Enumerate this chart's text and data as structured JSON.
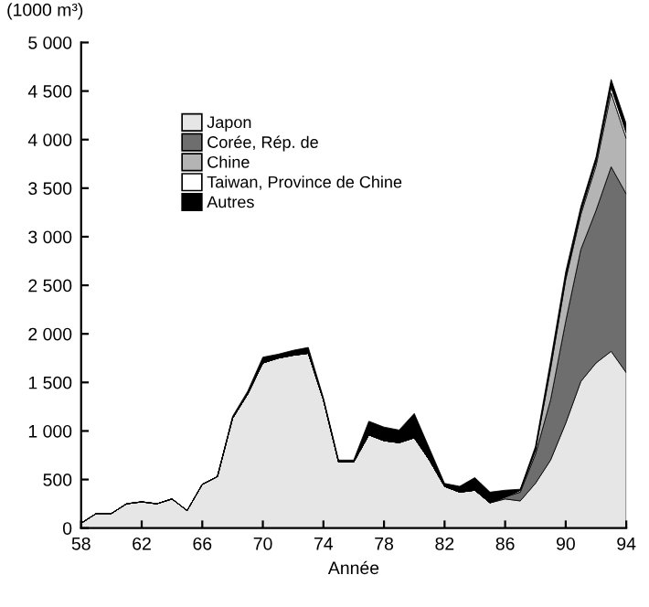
{
  "chart_data": {
    "type": "area",
    "stacked": true,
    "xlabel": "Année",
    "ylabel": "(1000 m³)",
    "legend": "top left",
    "grid": false,
    "x": [
      58,
      59,
      60,
      61,
      62,
      63,
      64,
      65,
      66,
      67,
      68,
      69,
      70,
      71,
      72,
      73,
      74,
      75,
      76,
      77,
      78,
      79,
      80,
      81,
      82,
      83,
      84,
      85,
      86,
      87,
      88,
      89,
      90,
      91,
      92,
      93,
      94
    ],
    "xlim": [
      58,
      94
    ],
    "xticks": [
      58,
      62,
      66,
      70,
      74,
      78,
      82,
      86,
      90,
      94
    ],
    "ylim": [
      0,
      5000
    ],
    "yticks": [
      0,
      500,
      {
        "value": 1000,
        "label": "1 000"
      },
      {
        "value": 1500,
        "label": "1 500"
      },
      {
        "value": 2000,
        "label": "2 000"
      },
      {
        "value": 2500,
        "label": "2 500"
      },
      {
        "value": 3000,
        "label": "3 000"
      },
      {
        "value": 3500,
        "label": "3 500"
      },
      {
        "value": 4000,
        "label": "4 000"
      },
      {
        "value": 4500,
        "label": "4 500"
      },
      {
        "value": 5000,
        "label": "5 000"
      }
    ],
    "series": [
      {
        "name": "Japon",
        "color": "#e6e6e6",
        "values": [
          50,
          150,
          150,
          250,
          270,
          250,
          300,
          180,
          450,
          530,
          1130,
          1380,
          1700,
          1750,
          1780,
          1800,
          1320,
          680,
          680,
          960,
          900,
          880,
          930,
          700,
          430,
          370,
          390,
          260,
          300,
          280,
          460,
          700,
          1080,
          1510,
          1700,
          1820,
          1600
        ]
      },
      {
        "name": "Corée, Rép. de",
        "color": "#6e6e6e",
        "values": [
          0,
          0,
          0,
          0,
          0,
          0,
          0,
          0,
          0,
          0,
          0,
          0,
          0,
          0,
          0,
          0,
          0,
          0,
          0,
          0,
          0,
          0,
          0,
          0,
          0,
          0,
          0,
          0,
          20,
          90,
          300,
          620,
          1050,
          1360,
          1570,
          1900,
          1840
        ]
      },
      {
        "name": "Chine",
        "color": "#b4b4b4",
        "values": [
          0,
          0,
          0,
          0,
          0,
          0,
          0,
          0,
          0,
          0,
          0,
          0,
          0,
          0,
          0,
          0,
          0,
          0,
          0,
          0,
          0,
          0,
          0,
          0,
          0,
          0,
          0,
          0,
          0,
          20,
          40,
          320,
          430,
          360,
          460,
          760,
          570
        ]
      },
      {
        "name": "Taiwan, Province de Chine",
        "color": "#ffffff",
        "values": [
          0,
          0,
          0,
          0,
          0,
          0,
          0,
          0,
          0,
          0,
          0,
          0,
          0,
          0,
          0,
          0,
          0,
          0,
          0,
          0,
          0,
          0,
          0,
          0,
          0,
          0,
          0,
          0,
          0,
          0,
          10,
          30,
          20,
          30,
          40,
          60,
          60
        ]
      },
      {
        "name": "Autres",
        "color": "#000000",
        "values": [
          0,
          0,
          0,
          0,
          0,
          0,
          0,
          0,
          0,
          0,
          20,
          30,
          60,
          40,
          50,
          60,
          20,
          20,
          20,
          140,
          140,
          130,
          250,
          120,
          30,
          60,
          130,
          110,
          70,
          10,
          30,
          50,
          60,
          50,
          50,
          80,
          90
        ]
      }
    ]
  }
}
